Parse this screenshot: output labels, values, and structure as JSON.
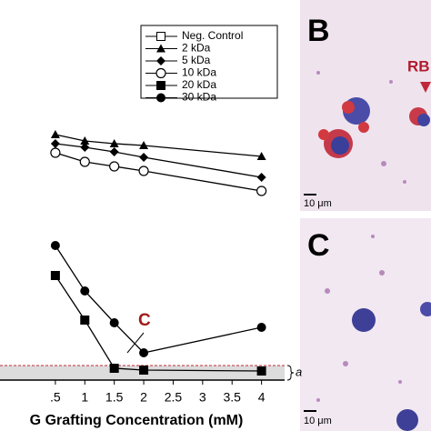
{
  "chart_data": {
    "type": "line",
    "x_label": "G Grafting Concentration (mM)",
    "x": [
      0.5,
      1,
      1.5,
      2,
      4
    ],
    "xlim": [
      -0.44,
      4.5
    ],
    "xticks": [
      {
        "value": 0.5,
        "label": ".5"
      },
      1,
      1.5,
      2,
      2.5,
      3,
      3.5,
      4
    ],
    "ylim": [
      0,
      100
    ],
    "series": [
      {
        "name": "Neg. Control",
        "marker": "open-square",
        "color": "#000000",
        "values": [
          null,
          null,
          null,
          null,
          null
        ]
      },
      {
        "name": "2 kDa",
        "marker": "triangle",
        "color": "#000000",
        "values": [
          67.5,
          65.75,
          65,
          64.5,
          61.5
        ]
      },
      {
        "name": "5 kDa",
        "marker": "diamond",
        "color": "#000000",
        "values": [
          65,
          64,
          62.75,
          61.25,
          55.75
        ]
      },
      {
        "name": "10 kDa",
        "marker": "open-circle",
        "color": "#000000",
        "values": [
          62.5,
          60,
          58.75,
          57.5,
          52
        ]
      },
      {
        "name": "20 kDa",
        "marker": "square",
        "color": "#000000",
        "values": [
          28.75,
          16.5,
          3.25,
          2.75,
          2.5
        ]
      },
      {
        "name": "30 kDa",
        "marker": "circle",
        "color": "#000000",
        "values": [
          37,
          24.5,
          15.75,
          7.5,
          14.5
        ]
      }
    ],
    "annotations": [
      "C",
      "a"
    ]
  },
  "panels": [
    {
      "label": "B",
      "callout": "RB",
      "scale": "10 μm"
    },
    {
      "label": "C",
      "scale": "10 μm"
    }
  ]
}
